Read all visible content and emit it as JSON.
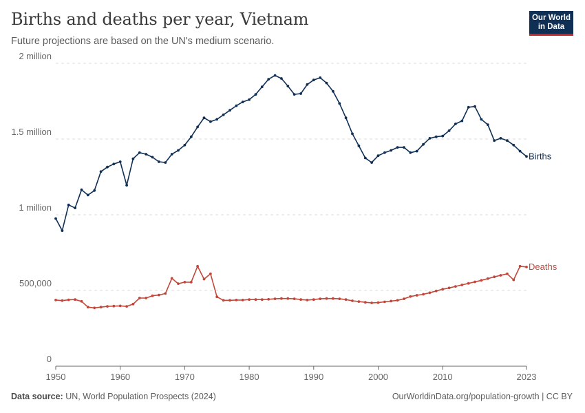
{
  "header": {
    "title": "Births and deaths per year, Vietnam",
    "subtitle": "Future projections are based on the UN's medium scenario.",
    "logo_line1": "Our World",
    "logo_line2": "in Data"
  },
  "footer": {
    "source_label": "Data source:",
    "source_text": "UN, World Population Prospects (2024)",
    "right_text": "OurWorldinData.org/population-growth | CC BY"
  },
  "colors": {
    "births": "#0f2f55",
    "deaths": "#c1473a",
    "grid": "#dddddd",
    "axis": "#666666",
    "tick_text": "#666666"
  },
  "chart_data": {
    "type": "line",
    "x_range": [
      1950,
      2023
    ],
    "ylim": [
      0,
      2000000
    ],
    "y_ticks": [
      {
        "value": 0,
        "label": "0"
      },
      {
        "value": 500000,
        "label": "500,000"
      },
      {
        "value": 1000000,
        "label": "1 million"
      },
      {
        "value": 1500000,
        "label": "1.5 million"
      },
      {
        "value": 2000000,
        "label": "2 million"
      }
    ],
    "x_ticks": [
      {
        "value": 1950,
        "label": "1950"
      },
      {
        "value": 1960,
        "label": "1960"
      },
      {
        "value": 1970,
        "label": "1970"
      },
      {
        "value": 1980,
        "label": "1980"
      },
      {
        "value": 1990,
        "label": "1990"
      },
      {
        "value": 2000,
        "label": "2000"
      },
      {
        "value": 2010,
        "label": "2010"
      },
      {
        "value": 2023,
        "label": "2023"
      }
    ],
    "grid": true,
    "legend": "inline-right",
    "x": [
      1950,
      1951,
      1952,
      1953,
      1954,
      1955,
      1956,
      1957,
      1958,
      1959,
      1960,
      1961,
      1962,
      1963,
      1964,
      1965,
      1966,
      1967,
      1968,
      1969,
      1970,
      1971,
      1972,
      1973,
      1974,
      1975,
      1976,
      1977,
      1978,
      1979,
      1980,
      1981,
      1982,
      1983,
      1984,
      1985,
      1986,
      1987,
      1988,
      1989,
      1990,
      1991,
      1992,
      1993,
      1994,
      1995,
      1996,
      1997,
      1998,
      1999,
      2000,
      2001,
      2002,
      2003,
      2004,
      2005,
      2006,
      2007,
      2008,
      2009,
      2010,
      2011,
      2012,
      2013,
      2014,
      2015,
      2016,
      2017,
      2018,
      2019,
      2020,
      2021,
      2022,
      2023
    ],
    "series": [
      {
        "name": "Births",
        "values": [
          975000,
          895000,
          1065000,
          1045000,
          1165000,
          1130000,
          1160000,
          1285000,
          1315000,
          1335000,
          1350000,
          1195000,
          1370000,
          1410000,
          1400000,
          1380000,
          1350000,
          1345000,
          1400000,
          1425000,
          1460000,
          1515000,
          1580000,
          1640000,
          1615000,
          1630000,
          1660000,
          1690000,
          1720000,
          1745000,
          1760000,
          1795000,
          1845000,
          1895000,
          1920000,
          1900000,
          1850000,
          1795000,
          1800000,
          1860000,
          1890000,
          1905000,
          1870000,
          1815000,
          1735000,
          1640000,
          1535000,
          1455000,
          1375000,
          1345000,
          1390000,
          1410000,
          1425000,
          1445000,
          1445000,
          1410000,
          1420000,
          1465000,
          1505000,
          1515000,
          1520000,
          1555000,
          1600000,
          1620000,
          1710000,
          1715000,
          1630000,
          1595000,
          1490000,
          1505000,
          1490000,
          1460000,
          1420000,
          1385000
        ]
      },
      {
        "name": "Deaths",
        "values": [
          437000,
          433000,
          438000,
          440000,
          428000,
          390000,
          385000,
          390000,
          395000,
          397000,
          398000,
          395000,
          410000,
          450000,
          450000,
          465000,
          470000,
          480000,
          580000,
          545000,
          555000,
          555000,
          660000,
          575000,
          610000,
          458000,
          435000,
          435000,
          437000,
          437000,
          440000,
          440000,
          440000,
          442000,
          445000,
          447000,
          447000,
          445000,
          440000,
          437000,
          440000,
          445000,
          447000,
          447000,
          445000,
          440000,
          432000,
          427000,
          422000,
          418000,
          420000,
          425000,
          430000,
          435000,
          445000,
          460000,
          468000,
          475000,
          485000,
          497000,
          508000,
          517000,
          527000,
          537000,
          547000,
          557000,
          567000,
          578000,
          590000,
          600000,
          610000,
          570000,
          660000,
          655000
        ]
      }
    ]
  }
}
